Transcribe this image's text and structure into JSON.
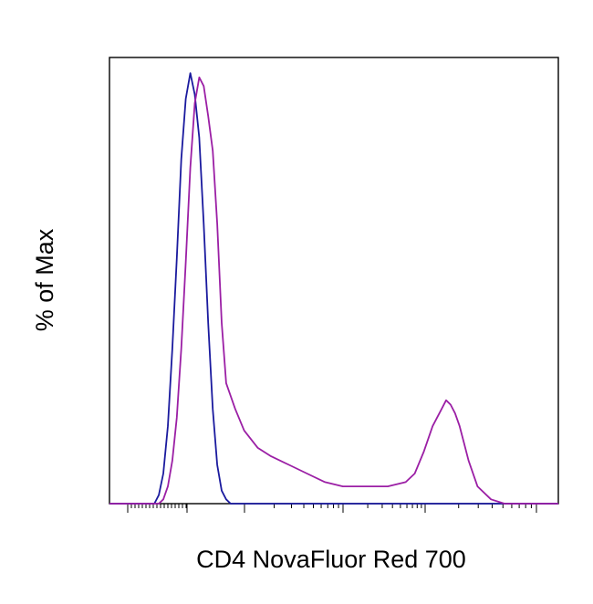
{
  "chart_data": {
    "type": "line",
    "title": "",
    "xlabel": "CD4 NovaFluor Red 700",
    "ylabel": "% of Max",
    "xscale": "log (biexponential)",
    "x_range": [
      0,
      1
    ],
    "y_range": [
      0,
      100
    ],
    "grid": false,
    "legend": "none",
    "tick_labels_visible": false,
    "series": [
      {
        "color": "#1a1a9e",
        "x": [
          0.0,
          0.1,
          0.11,
          0.12,
          0.13,
          0.14,
          0.15,
          0.16,
          0.17,
          0.18,
          0.19,
          0.2,
          0.21,
          0.22,
          0.23,
          0.24,
          0.25,
          0.26,
          0.27,
          1.0
        ],
        "y": [
          0,
          0,
          2,
          7,
          18,
          36,
          57,
          80,
          94,
          100,
          95,
          85,
          65,
          42,
          22,
          9,
          3,
          1,
          0,
          0
        ]
      },
      {
        "color": "#9b1fa5",
        "x": [
          0.0,
          0.11,
          0.12,
          0.13,
          0.14,
          0.15,
          0.16,
          0.17,
          0.18,
          0.19,
          0.2,
          0.21,
          0.22,
          0.23,
          0.24,
          0.25,
          0.26,
          0.28,
          0.3,
          0.33,
          0.36,
          0.4,
          0.44,
          0.48,
          0.52,
          0.55,
          0.58,
          0.62,
          0.66,
          0.68,
          0.7,
          0.72,
          0.74,
          0.75,
          0.76,
          0.77,
          0.78,
          0.79,
          0.8,
          0.82,
          0.85,
          0.88,
          0.9,
          0.95,
          1.0
        ],
        "y": [
          0,
          0,
          1,
          4,
          10,
          20,
          36,
          56,
          78,
          93,
          99,
          97,
          90,
          82,
          65,
          42,
          28,
          22,
          17,
          13,
          11,
          9,
          7,
          5,
          4,
          4,
          4,
          4,
          5,
          7,
          12,
          18,
          22,
          24,
          23,
          21,
          18,
          14,
          10,
          4,
          1,
          0,
          0,
          0,
          0
        ]
      }
    ]
  }
}
